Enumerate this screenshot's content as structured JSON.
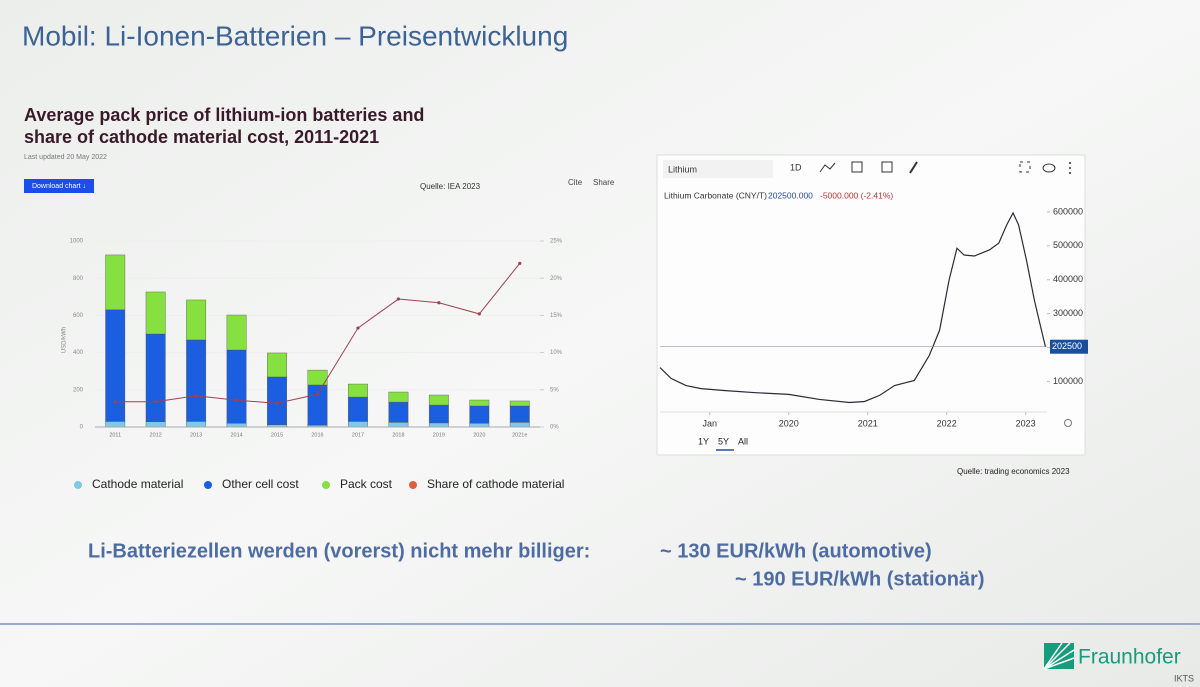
{
  "slide": {
    "title": "Mobil: Li-Ionen-Batterien – Preisentwicklung",
    "conclusion": "Li-Batteriezellen werden (vorerst) nicht mehr billiger:",
    "automotive": "~ 130 EUR/kWh (automotive)",
    "stationary": "~ 190 EUR/kWh (stationär)",
    "logo": "Fraunhofer",
    "logo_sub": "IKTS"
  },
  "chart_data": [
    {
      "type": "bar",
      "stacked": true,
      "title": "Average pack price of lithium-ion batteries and share of cathode material cost, 2011-2021",
      "subtitle": "Last updated 20 May 2022",
      "download_button": "Download chart ↓",
      "source": "Quelle: IEA 2023",
      "cite": "Cite",
      "share": "Share",
      "y_label": "USD/kWh",
      "categories": [
        "2011",
        "2012",
        "2013",
        "2014",
        "2015",
        "2016",
        "2017",
        "2018",
        "2019",
        "2020",
        "2021e"
      ],
      "series": [
        {
          "name": "Cathode material",
          "color": "#7ec8e8",
          "values": [
            30,
            28,
            30,
            20,
            12,
            10,
            30,
            25,
            22,
            20,
            25
          ]
        },
        {
          "name": "Other cell cost",
          "color": "#1c5ee0",
          "values": [
            600,
            472,
            438,
            394,
            257,
            216,
            131,
            109,
            96,
            93,
            88
          ]
        },
        {
          "name": "Pack cost",
          "color": "#86e040",
          "values": [
            295,
            226,
            215,
            188,
            129,
            80,
            70,
            54,
            54,
            32,
            27
          ]
        },
        {
          "name": "Share of cathode material",
          "color": "#a04050",
          "type": "line",
          "axis": "y2",
          "values": [
            3.4,
            3.4,
            4.2,
            3.6,
            3.2,
            4.4,
            13.3,
            17.2,
            16.7,
            15.2,
            22.0
          ]
        }
      ],
      "ylim": [
        0,
        1000
      ],
      "yticks": [
        0,
        200,
        400,
        600,
        800,
        1000
      ],
      "y2lim": [
        0,
        25
      ],
      "y2ticks": [
        {
          "value": 0,
          "label": "0%"
        },
        {
          "value": 5,
          "label": "5%"
        },
        {
          "value": 10,
          "label": "10%"
        },
        {
          "value": 15,
          "label": "15%"
        },
        {
          "value": 20,
          "label": "20%"
        },
        {
          "value": 25,
          "label": "25%"
        }
      ],
      "legend": "bottom"
    },
    {
      "type": "line",
      "title": "Lithium",
      "range_button": "1D",
      "price_text": "202500.000",
      "change_text": "-5000.000 (-2.41%)",
      "periods": [
        "1Y",
        "5Y",
        "All"
      ],
      "source": "Quelle: trading economics 2023",
      "x": [
        2018.37,
        2018.51,
        2018.7,
        2018.89,
        2019.2,
        2019.58,
        2020.0,
        2020.39,
        2020.77,
        2020.96,
        2021.15,
        2021.34,
        2021.59,
        2021.78,
        2021.91,
        2022.03,
        2022.13,
        2022.22,
        2022.35,
        2022.54,
        2022.66,
        2022.76,
        2022.84,
        2022.91,
        2023.01,
        2023.11,
        2023.2,
        2023.25
      ],
      "series": [
        {
          "name": "Lithium Carbonate (CNY/T)",
          "color": "#2a2a3a",
          "values": [
            141000,
            109000,
            88000,
            79000,
            73000,
            67000,
            62000,
            47000,
            38000,
            41000,
            59000,
            88000,
            103000,
            177000,
            251000,
            399000,
            493000,
            473000,
            470000,
            488000,
            508000,
            562000,
            597000,
            562000,
            458000,
            340000,
            251000,
            202500
          ]
        }
      ],
      "xlim": [
        2018.37,
        2023.27
      ],
      "xticks": [
        {
          "value": 2019,
          "label": "Jan"
        },
        2020,
        2021,
        2022,
        2023
      ],
      "ylim": [
        10000,
        650000
      ],
      "yticks": [
        100000,
        200000,
        300000,
        400000,
        500000,
        600000
      ]
    }
  ]
}
